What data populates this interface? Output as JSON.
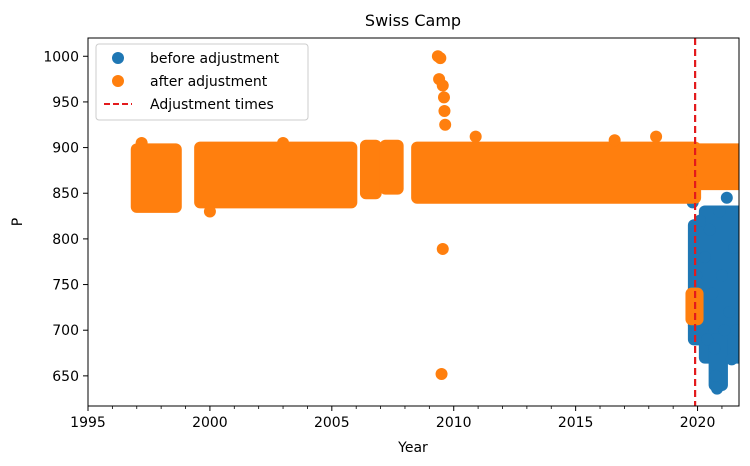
{
  "chart_data": {
    "type": "scatter",
    "title": "Swiss Camp",
    "xlabel": "Year",
    "ylabel": "P",
    "xlim": [
      1995,
      2021.7
    ],
    "ylim": [
      617,
      1020
    ],
    "x_ticks": [
      1995,
      2000,
      2005,
      2010,
      2015,
      2020
    ],
    "y_ticks": [
      650,
      700,
      750,
      800,
      850,
      900,
      950,
      1000
    ],
    "grid": false,
    "legend_position": "top-left",
    "series": [
      {
        "name": "before adjustment",
        "color": "#1f77b4",
        "points": [
          {
            "x": 2019.8,
            "y": 840
          },
          {
            "x": 2019.85,
            "y": 705
          },
          {
            "x": 2019.95,
            "y": 760
          },
          {
            "x": 2020.1,
            "y": 820
          },
          {
            "x": 2020.2,
            "y": 700
          },
          {
            "x": 2020.3,
            "y": 780
          },
          {
            "x": 2020.4,
            "y": 690
          },
          {
            "x": 2020.5,
            "y": 810
          },
          {
            "x": 2020.6,
            "y": 740
          },
          {
            "x": 2020.7,
            "y": 680
          },
          {
            "x": 2020.75,
            "y": 650
          },
          {
            "x": 2020.8,
            "y": 636
          },
          {
            "x": 2020.9,
            "y": 830
          },
          {
            "x": 2021.0,
            "y": 760
          },
          {
            "x": 2021.1,
            "y": 700
          },
          {
            "x": 2021.2,
            "y": 845
          },
          {
            "x": 2021.3,
            "y": 720
          },
          {
            "x": 2021.4,
            "y": 668
          },
          {
            "x": 2021.5,
            "y": 790
          },
          {
            "x": 2021.6,
            "y": 700
          }
        ],
        "bands": [
          {
            "x0": 2019.85,
            "x1": 2021.7,
            "y0": 690,
            "y1": 815
          },
          {
            "x0": 2020.3,
            "x1": 2021.7,
            "y0": 670,
            "y1": 830
          },
          {
            "x0": 2020.7,
            "x1": 2021.0,
            "y0": 640,
            "y1": 690
          }
        ]
      },
      {
        "name": "after adjustment",
        "color": "#ff7f0e",
        "points": [
          {
            "x": 2009.35,
            "y": 1000
          },
          {
            "x": 2009.45,
            "y": 998
          },
          {
            "x": 2009.4,
            "y": 975
          },
          {
            "x": 2009.55,
            "y": 968
          },
          {
            "x": 2009.6,
            "y": 955
          },
          {
            "x": 2009.62,
            "y": 940
          },
          {
            "x": 2009.65,
            "y": 925
          },
          {
            "x": 2009.55,
            "y": 789
          },
          {
            "x": 2009.5,
            "y": 652
          },
          {
            "x": 1997.2,
            "y": 905
          },
          {
            "x": 2000.0,
            "y": 830
          },
          {
            "x": 2003.0,
            "y": 905
          },
          {
            "x": 2010.9,
            "y": 912
          },
          {
            "x": 2016.6,
            "y": 908
          },
          {
            "x": 2018.3,
            "y": 912
          },
          {
            "x": 2019.9,
            "y": 730
          },
          {
            "x": 2019.9,
            "y": 715
          },
          {
            "x": 2019.8,
            "y": 870
          }
        ],
        "bands": [
          {
            "x0": 1997.0,
            "x1": 1998.6,
            "y0": 835,
            "y1": 898
          },
          {
            "x0": 1999.6,
            "x1": 2005.8,
            "y0": 840,
            "y1": 900
          },
          {
            "x0": 2006.4,
            "x1": 2006.8,
            "y0": 850,
            "y1": 902
          },
          {
            "x0": 2007.2,
            "x1": 2007.7,
            "y0": 855,
            "y1": 902
          },
          {
            "x0": 2008.5,
            "x1": 2019.9,
            "y0": 845,
            "y1": 900
          },
          {
            "x0": 2020.0,
            "x1": 2021.7,
            "y0": 860,
            "y1": 898
          },
          {
            "x0": 2019.75,
            "x1": 2020.0,
            "y0": 712,
            "y1": 740
          }
        ]
      }
    ],
    "adjustment": {
      "name": "Adjustment times",
      "color": "#e31a1c",
      "x": 2019.9
    }
  }
}
